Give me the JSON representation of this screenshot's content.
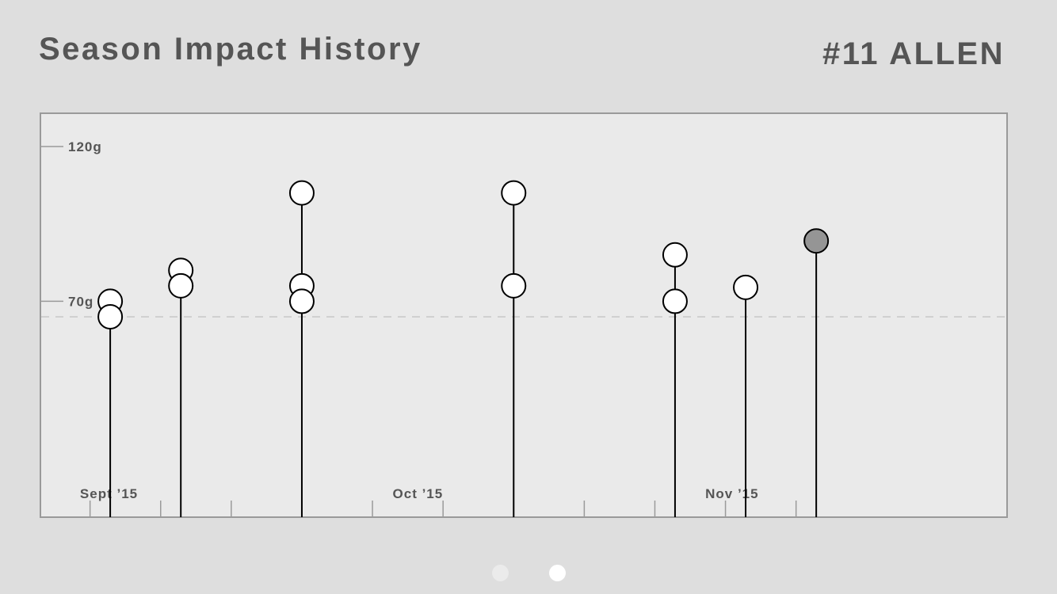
{
  "header": {
    "title": "Season Impact History",
    "player": "#11 ALLEN"
  },
  "pager": {
    "page_count": 2,
    "active_index": 1
  },
  "colors": {
    "background": "#dedede",
    "plot_background": "#eaeaea",
    "frame": "#9a9a9a",
    "text": "#555555",
    "marker_fill": "#ffffff",
    "highlight_fill": "#959595",
    "stem": "#000000",
    "threshold_line": "#c8c8c8"
  },
  "chart_data": {
    "type": "scatter",
    "style": "lollipop",
    "title": "Season Impact History",
    "ylabel": "",
    "xlabel": "",
    "ylim": [
      0,
      131
    ],
    "xlim": [
      "2015-08-27",
      "2015-12-01"
    ],
    "yticks": [
      {
        "value": 120,
        "label": "120g"
      },
      {
        "value": 70,
        "label": "70g"
      }
    ],
    "threshold": 65,
    "month_labels": [
      {
        "date": "2015-08-31",
        "label": "Sept ’15"
      },
      {
        "date": "2015-10-01",
        "label": "Oct ’15"
      },
      {
        "date": "2015-11-01",
        "label": "Nov ’15"
      }
    ],
    "week_ticks": [
      "2015-09-01",
      "2015-09-08",
      "2015-09-15",
      "2015-09-22",
      "2015-09-29",
      "2015-10-06",
      "2015-10-13",
      "2015-10-20",
      "2015-10-27",
      "2015-11-03",
      "2015-11-10"
    ],
    "games": [
      {
        "date": "2015-09-03",
        "impacts": [
          70,
          65
        ],
        "highlight": false
      },
      {
        "date": "2015-09-10",
        "impacts": [
          80,
          75
        ],
        "highlight": false
      },
      {
        "date": "2015-09-22",
        "impacts": [
          105,
          75,
          70
        ],
        "highlight": false
      },
      {
        "date": "2015-10-13",
        "impacts": [
          105,
          75
        ],
        "highlight": false
      },
      {
        "date": "2015-10-29",
        "impacts": [
          85,
          70
        ],
        "highlight": false
      },
      {
        "date": "2015-11-05",
        "impacts": [
          74.5
        ],
        "highlight": false
      },
      {
        "date": "2015-11-12",
        "impacts": [
          89.5
        ],
        "highlight": true
      }
    ],
    "grid": false,
    "legend": "none"
  }
}
